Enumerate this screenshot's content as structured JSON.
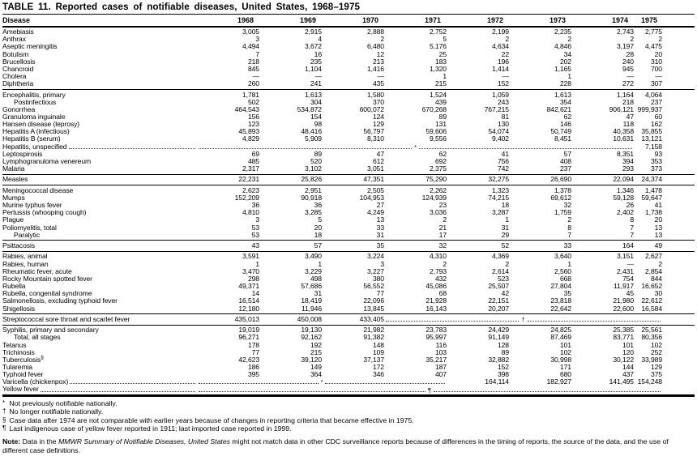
{
  "title": "TABLE 11. Reported cases of notifiable diseases, United States, 1968–1975",
  "table": {
    "columns": [
      "Disease",
      "1968",
      "1969",
      "1970",
      "1971",
      "1972",
      "1973",
      "1974",
      "1975"
    ],
    "groups": [
      {
        "rows": [
          {
            "disease": "Amebiasis",
            "cells": [
              "3,005",
              "2,915",
              "2,888",
              "2,752",
              "2,199",
              "2,235",
              "2,743",
              "2,775"
            ]
          },
          {
            "disease": "Anthrax",
            "cells": [
              "3",
              "4",
              "2",
              "5",
              "2",
              "2",
              "2",
              "2"
            ]
          },
          {
            "disease": "Aseptic meningitis",
            "cells": [
              "4,494",
              "3,672",
              "6,480",
              "5,176",
              "4,634",
              "4,846",
              "3,197",
              "4,475"
            ]
          },
          {
            "disease": "Botulism",
            "cells": [
              "7",
              "16",
              "12",
              "25",
              "22",
              "34",
              "28",
              "20"
            ]
          },
          {
            "disease": "Brucellosis",
            "cells": [
              "218",
              "235",
              "213",
              "183",
              "196",
              "202",
              "240",
              "310"
            ]
          },
          {
            "disease": "Chancroid",
            "cells": [
              "845",
              "1,104",
              "1,416",
              "1,320",
              "1,414",
              "1,165",
              "945",
              "700"
            ]
          },
          {
            "disease": "Cholera",
            "cells": [
              "—",
              "—",
              "—",
              "1",
              "—",
              "1",
              "—",
              "—"
            ]
          },
          {
            "disease": "Diphtheria",
            "cells": [
              "260",
              "241",
              "435",
              "215",
              "152",
              "228",
              "272",
              "307"
            ]
          }
        ]
      },
      {
        "rows": [
          {
            "disease": "Encephalitis, primary",
            "cells": [
              "1,781",
              "1,613",
              "1,580",
              "1,524",
              "1,059",
              "1,613",
              "1,164",
              "4,064"
            ]
          },
          {
            "disease": "Postinfectious",
            "indent": true,
            "cells": [
              "502",
              "304",
              "370",
              "439",
              "243",
              "354",
              "218",
              "237"
            ]
          },
          {
            "disease": "Gonorrhea",
            "cells": [
              "464,543",
              "534,872",
              "600,072",
              "670,268",
              "767,215",
              "842,621",
              "906,121",
              "999,937"
            ]
          },
          {
            "disease": "Granuloma inguinale",
            "cells": [
              "156",
              "154",
              "124",
              "89",
              "81",
              "62",
              "47",
              "60"
            ]
          },
          {
            "disease": "Hansen disease (leprosy)",
            "cells": [
              "123",
              "98",
              "129",
              "131",
              "130",
              "146",
              "118",
              "162"
            ]
          },
          {
            "disease": "Hepatitis A (infectious)",
            "cells": [
              "45,893",
              "48,416",
              "56,797",
              "59,606",
              "54,074",
              "50,749",
              "40,358",
              "35,855"
            ]
          },
          {
            "disease": "Hepatitis B (serum)",
            "cells": [
              "4,829",
              "5,909",
              "8,310",
              "9,556",
              "9,402",
              "8,451",
              "10,631",
              "13,121"
            ]
          },
          {
            "disease": "Hepatitis, unspecified",
            "label_dots": true,
            "cells": [
              {
                "span": 7,
                "marker": "*"
              },
              "7,158"
            ]
          },
          {
            "disease": "Leptospirosis",
            "cells": [
              "69",
              "89",
              "47",
              "62",
              "41",
              "57",
              "8,351",
              "93"
            ]
          },
          {
            "disease": "Lymphogranuloma venereum",
            "cells": [
              "485",
              "520",
              "612",
              "692",
              "756",
              "408",
              "394",
              "353"
            ]
          },
          {
            "disease": "Malaria",
            "cells": [
              "2,317",
              "3,102",
              "3,051",
              "2,375",
              "742",
              "237",
              "293",
              "373"
            ]
          }
        ]
      },
      {
        "rows": [
          {
            "disease": "Measles",
            "cells": [
              "22,231",
              "25,826",
              "47,351",
              "75,290",
              "32,275",
              "26,690",
              "22,094",
              "24,374"
            ]
          }
        ]
      },
      {
        "rows": [
          {
            "disease": "Meningococcal disease",
            "cells": [
              "2,623",
              "2,951",
              "2,505",
              "2,262",
              "1,323",
              "1,378",
              "1,346",
              "1,478"
            ]
          },
          {
            "disease": "Mumps",
            "cells": [
              "152,209",
              "90,918",
              "104,953",
              "124,939",
              "74,215",
              "69,612",
              "59,128",
              "59,647"
            ]
          },
          {
            "disease": "Murine typhus fever",
            "cells": [
              "36",
              "36",
              "27",
              "23",
              "18",
              "32",
              "26",
              "41"
            ]
          },
          {
            "disease": "Pertussis (whooping cough)",
            "cells": [
              "4,810",
              "3,285",
              "4,249",
              "3,036",
              "3,287",
              "1,759",
              "2,402",
              "1,738"
            ]
          },
          {
            "disease": "Plague",
            "cells": [
              "3",
              "5",
              "13",
              "2",
              "1",
              "2",
              "8",
              "20"
            ]
          },
          {
            "disease": "Poliomyelitis, total",
            "cells": [
              "53",
              "20",
              "33",
              "21",
              "31",
              "8",
              "7",
              "13"
            ]
          },
          {
            "disease": "Paralytic",
            "indent": true,
            "cells": [
              "53",
              "18",
              "31",
              "17",
              "29",
              "7",
              "7",
              "13"
            ]
          }
        ]
      },
      {
        "rows": [
          {
            "disease": "Psittacosis",
            "cells": [
              "43",
              "57",
              "35",
              "32",
              "52",
              "33",
              "164",
              "49"
            ]
          }
        ]
      },
      {
        "rows": [
          {
            "disease": "Rabies, animal",
            "cells": [
              "3,591",
              "3,490",
              "3,224",
              "4,310",
              "4,369",
              "3,640",
              "3,151",
              "2,627"
            ]
          },
          {
            "disease": "Rabies, human",
            "cells": [
              "1",
              "1",
              "3",
              "2",
              "2",
              "1",
              "—",
              "2"
            ]
          },
          {
            "disease": "Rheumatic fever, acute",
            "cells": [
              "3,470",
              "3,229",
              "3,227",
              "2,793",
              "2,614",
              "2,560",
              "2,431",
              "2,854"
            ]
          },
          {
            "disease": "Rocky Mountain spotted fever",
            "cells": [
              "298",
              "498",
              "380",
              "432",
              "523",
              "668",
              "754",
              "844"
            ]
          },
          {
            "disease": "Rubella",
            "cells": [
              "49,371",
              "57,686",
              "56,552",
              "45,086",
              "25,507",
              "27,804",
              "11,917",
              "16,652"
            ]
          },
          {
            "disease": "Rubella, congenital syndrome",
            "cells": [
              "14",
              "31",
              "77",
              "68",
              "42",
              "35",
              "45",
              "30"
            ]
          },
          {
            "disease": "Salmonellosis, excluding typhoid fever",
            "cells": [
              "16,514",
              "18,419",
              "22,096",
              "21,928",
              "22,151",
              "23,818",
              "21,980",
              "22,612"
            ]
          },
          {
            "disease": "Shigellosis",
            "cells": [
              "12,180",
              "11,946",
              "13,845",
              "16,143",
              "20,207",
              "22,642",
              "22,600",
              "16,584"
            ]
          }
        ]
      },
      {
        "rows": [
          {
            "disease": "Streptococcal sore throat and scarlet fever",
            "cells": [
              "435,013",
              "450,008",
              "433,405",
              {
                "span": 5,
                "marker": "†"
              }
            ]
          }
        ]
      },
      {
        "rows": [
          {
            "disease": "Syphilis, primary and secondary",
            "cells": [
              "19,019",
              "19,130",
              "21,982",
              "23,783",
              "24,429",
              "24,825",
              "25,385",
              "25,561"
            ]
          },
          {
            "disease": "Total, all stages",
            "indent": true,
            "cells": [
              "96,271",
              "92,162",
              "91,382",
              "95,997",
              "91,149",
              "87,469",
              "83,771",
              "80,356"
            ]
          },
          {
            "disease": "Tetanus",
            "cells": [
              "178",
              "192",
              "148",
              "116",
              "128",
              "101",
              "101",
              "102"
            ]
          },
          {
            "disease": "Trichinosis",
            "cells": [
              "77",
              "215",
              "109",
              "103",
              "89",
              "102",
              "120",
              "252"
            ]
          },
          {
            "disease": "Tuberculosis",
            "sup": "§",
            "cells": [
              "42,623",
              "39,120",
              "37,137",
              "35,217",
              "32,882",
              "30,998",
              "30,122",
              "33,989"
            ]
          },
          {
            "disease": "Tularemia",
            "cells": [
              "186",
              "149",
              "172",
              "187",
              "152",
              "171",
              "144",
              "129"
            ]
          },
          {
            "disease": "Typhoid fever",
            "cells": [
              "395",
              "364",
              "346",
              "407",
              "398",
              "680",
              "437",
              "375"
            ]
          },
          {
            "disease": "Varicella (chickenpox)",
            "label_dots": true,
            "cells": [
              {
                "span": 4,
                "marker": "*"
              },
              "164,114",
              "182,927",
              "141,495",
              "154,248"
            ]
          },
          {
            "disease": "Yellow fever",
            "label_dots": true,
            "cells": [
              {
                "span": 8,
                "marker": "¶"
              }
            ]
          }
        ]
      }
    ]
  },
  "footnotes": [
    {
      "marker": "*",
      "text": "Not previously notifiable nationally."
    },
    {
      "marker": "†",
      "text": "No longer notifiable nationally."
    },
    {
      "marker": "§",
      "text": "Case data after 1974 are not comparable with earlier years because of changes in reporting criteria that became effective in 1975."
    },
    {
      "marker": "¶",
      "text": "Last indigenous case of yellow fever reported in 1911; last imported case reported in 1999."
    }
  ],
  "note": {
    "label": "Note:",
    "pre": " Data in the ",
    "italic": "MMWR Summary of Notifiable Diseases, United States",
    "post": " might not match data in other CDC surveillance reports because of differences in the timing of reports, the source of the data, and the use of different case definitions."
  }
}
